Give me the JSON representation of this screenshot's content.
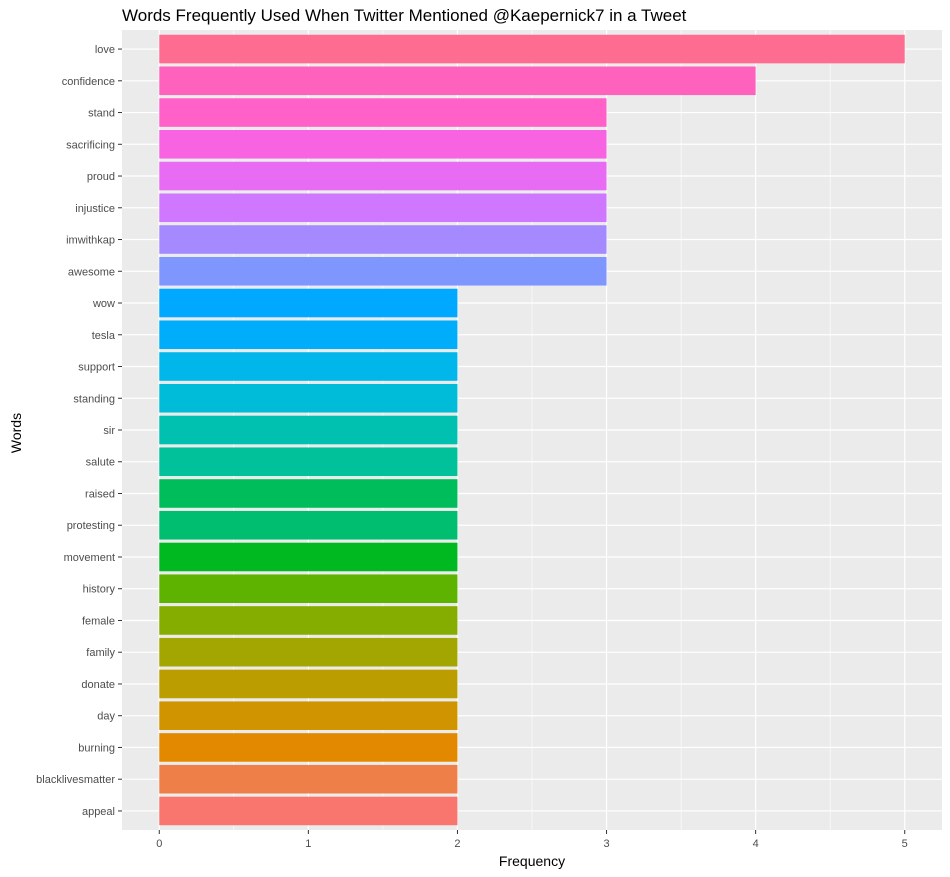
{
  "chart_data": {
    "type": "bar",
    "orientation": "horizontal",
    "title": "Words Frequently Used When Twitter Mentioned @Kaepernick7 in a Tweet",
    "xlabel": "Frequency",
    "ylabel": "Words",
    "xlim": [
      0,
      5
    ],
    "xticks": [
      0,
      1,
      2,
      3,
      4,
      5
    ],
    "grid": true,
    "categories": [
      "love",
      "confidence",
      "stand",
      "sacrificing",
      "proud",
      "injustice",
      "imwithkap",
      "awesome",
      "wow",
      "tesla",
      "support",
      "standing",
      "sir",
      "salute",
      "raised",
      "protesting",
      "movement",
      "history",
      "female",
      "family",
      "donate",
      "day",
      "burning",
      "blacklivesmatter",
      "appeal"
    ],
    "values": [
      5,
      4,
      3,
      3,
      3,
      3,
      3,
      3,
      2,
      2,
      2,
      2,
      2,
      2,
      2,
      2,
      2,
      2,
      2,
      2,
      2,
      2,
      2,
      2,
      2
    ],
    "colors": [
      "#FF6C91",
      "#FF62BC",
      "#FF61C9",
      "#F763E0",
      "#E76BF3",
      "#CF78FF",
      "#A58AFF",
      "#7F96FF",
      "#00A9FF",
      "#00ADFA",
      "#00B6EB",
      "#00BCD8",
      "#00C0AF",
      "#00C19A",
      "#00BD5C",
      "#00BE70",
      "#00B81F",
      "#5EB300",
      "#85AD00",
      "#A3A500",
      "#BB9D00",
      "#CF9400",
      "#E38900",
      "#EF7F49",
      "#F8766D"
    ]
  }
}
